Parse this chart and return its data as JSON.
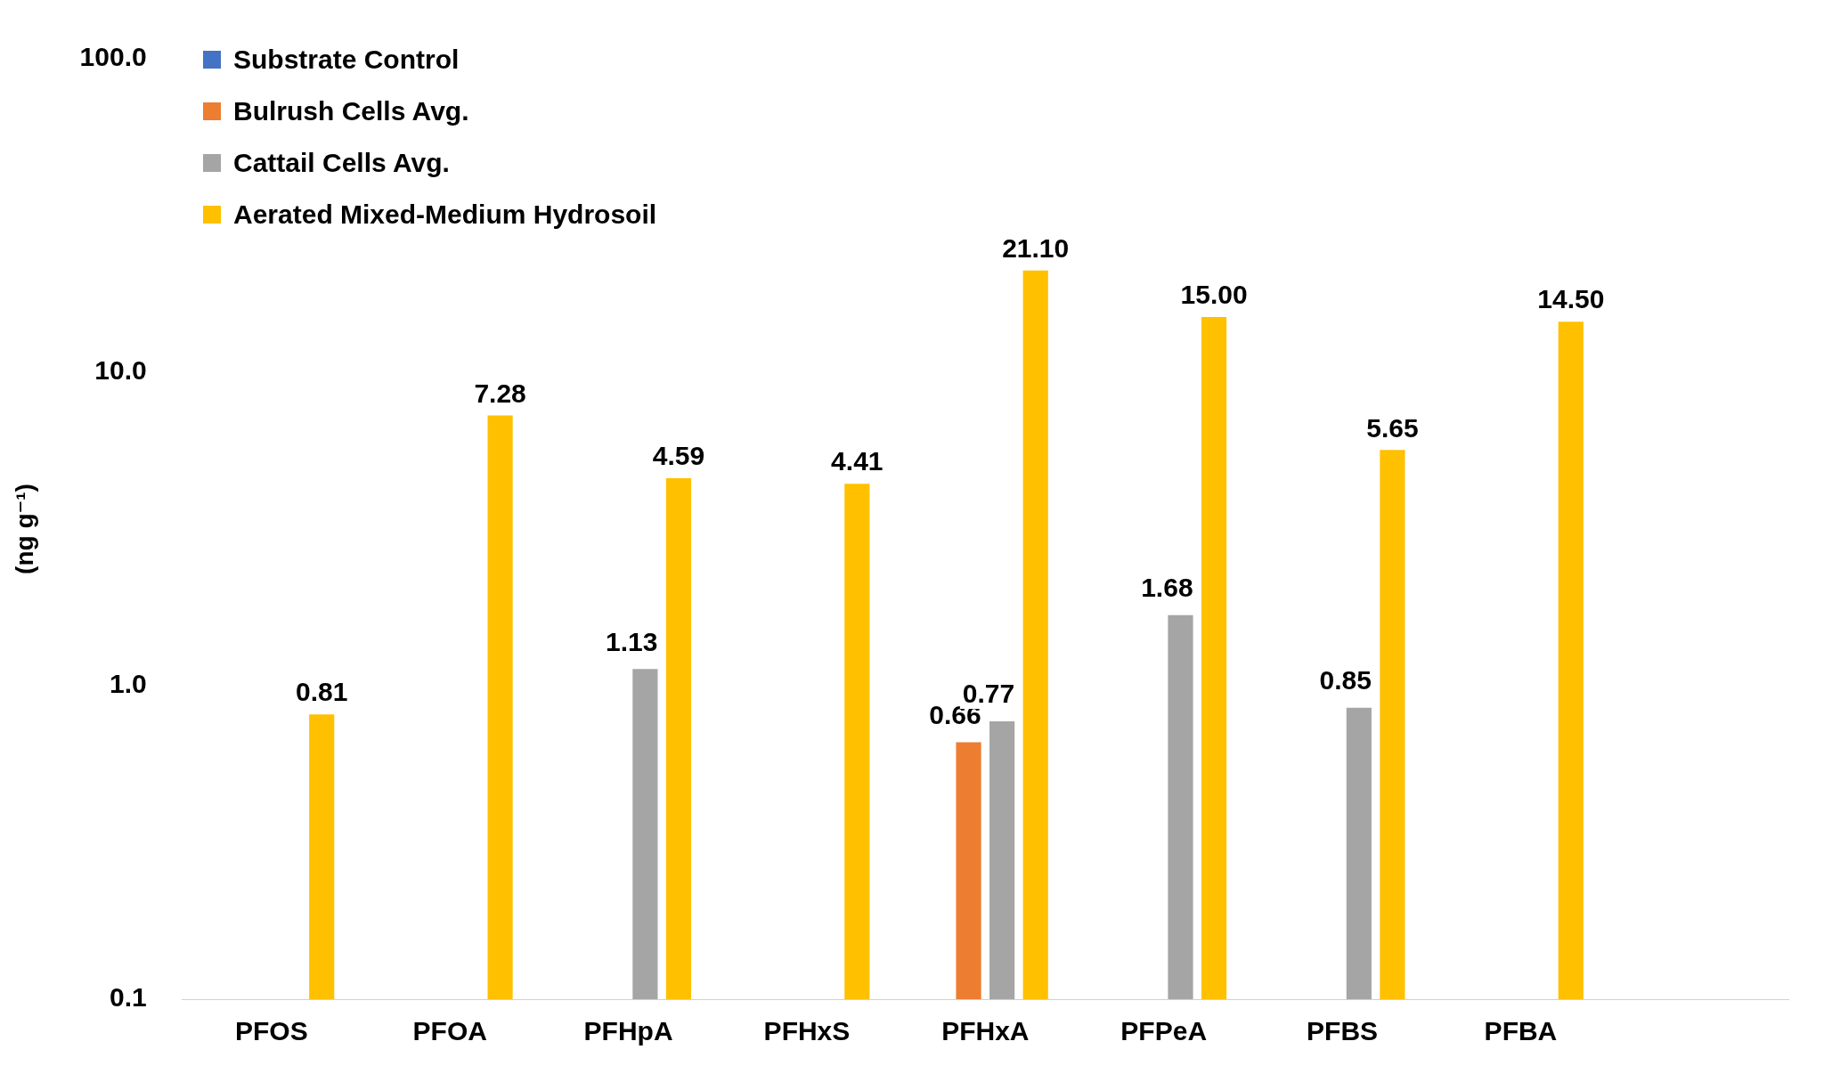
{
  "chart_data": {
    "type": "bar",
    "ylabel": "(ng g⁻¹)",
    "categories": [
      "PFOS",
      "PFOA",
      "PFHpA",
      "PFHxS",
      "PFHxA",
      "PFPeA",
      "PFBS",
      "PFBA",
      null
    ],
    "series": [
      {
        "name": "Substrate Control",
        "color": "#4472c4",
        "values": [
          null,
          null,
          null,
          null,
          null,
          null,
          null,
          null,
          null
        ]
      },
      {
        "name": "Bulrush Cells Avg.",
        "color": "#ed7d31",
        "values": [
          null,
          null,
          null,
          null,
          0.66,
          null,
          null,
          null,
          null
        ],
        "value_labels": [
          null,
          null,
          null,
          null,
          "0.66",
          null,
          null,
          null,
          null
        ]
      },
      {
        "name": "Cattail Cells Avg.",
        "color": "#a5a5a5",
        "values": [
          null,
          null,
          1.13,
          null,
          0.77,
          1.68,
          0.85,
          null,
          null
        ],
        "value_labels": [
          null,
          null,
          "1.13",
          null,
          "0.77",
          "1.68",
          "0.85",
          null,
          null
        ]
      },
      {
        "name": "Aerated Mixed-Medium Hydrosoil",
        "color": "#ffc000",
        "values": [
          0.81,
          7.28,
          4.59,
          4.41,
          21.1,
          15.0,
          5.65,
          14.5,
          null
        ],
        "value_labels": [
          "0.81",
          "7.28",
          "4.59",
          "4.41",
          "21.10",
          "15.00",
          "5.65",
          "14.50",
          null
        ]
      }
    ],
    "log": "y",
    "ylim": [
      0.1,
      100
    ],
    "yticks": [
      {
        "value": 0.1,
        "label": "0.1"
      },
      {
        "value": 1,
        "label": "1.0"
      },
      {
        "value": 10,
        "label": "10.0"
      },
      {
        "value": 100,
        "label": "100.0"
      }
    ],
    "grid": false,
    "legend": "top left"
  }
}
